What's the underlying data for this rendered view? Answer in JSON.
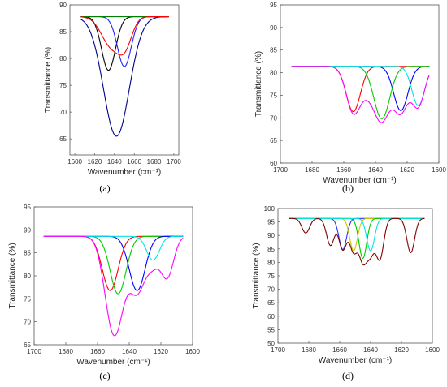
{
  "figure": {
    "panel_labels": [
      "(a)",
      "(b)",
      "(c)",
      "(d)"
    ]
  },
  "chart_data": [
    {
      "type": "line",
      "panel": "a",
      "xlabel": "Wavenumber (cm⁻¹)",
      "ylabel": "Transmittance (%)",
      "xlim": [
        1595,
        1705
      ],
      "ylim": [
        62,
        90
      ],
      "x_reversed": false,
      "xticks": [
        1600,
        1620,
        1640,
        1660,
        1680,
        1700
      ],
      "yticks": [
        65,
        70,
        75,
        80,
        85,
        90
      ],
      "baseline": 87.8,
      "x_range": [
        1606,
        1695
      ],
      "series": [
        {
          "color": "#00008b",
          "components": [
            {
              "center": 1642,
              "depth": 22.3,
              "width": 13
            }
          ]
        },
        {
          "color": "#000000",
          "components": [
            {
              "center": 1634,
              "depth": 10.0,
              "width": 7
            }
          ]
        },
        {
          "color": "#2222ff",
          "components": [
            {
              "center": 1650,
              "depth": 9.3,
              "width": 7
            }
          ]
        },
        {
          "color": "#008000",
          "components": []
        },
        {
          "color": "#ff0000",
          "components": [
            {
              "center": 1637,
              "depth": 5.5,
              "width": 10
            },
            {
              "center": 1651,
              "depth": 4.5,
              "width": 7
            }
          ]
        }
      ]
    },
    {
      "type": "line",
      "panel": "b",
      "xlabel": "Wavenumber (cm⁻¹)",
      "ylabel": "Transmittance (%)",
      "xlim": [
        1700,
        1600
      ],
      "ylim": [
        60,
        95
      ],
      "x_reversed": true,
      "xticks": [
        1700,
        1680,
        1660,
        1640,
        1620,
        1600
      ],
      "yticks": [
        60,
        65,
        70,
        75,
        80,
        85,
        90,
        95
      ],
      "baseline": 81.4,
      "x_range": [
        1693,
        1606
      ],
      "series": [
        {
          "color": "#0000ff",
          "components": [
            {
              "center": 1624,
              "depth": 9.8,
              "width": 4.5
            }
          ]
        },
        {
          "color": "#ff0000",
          "components": [
            {
              "center": 1654,
              "depth": 10.0,
              "width": 4.5
            }
          ]
        },
        {
          "color": "#00cc00",
          "components": [
            {
              "center": 1636,
              "depth": 11.6,
              "width": 5
            }
          ]
        },
        {
          "color": "#00e5e5",
          "components": [
            {
              "center": 1613,
              "depth": 8.7,
              "width": 4
            }
          ]
        },
        {
          "color": "#ff00ff",
          "components": [
            {
              "center": 1654,
              "depth": 10.0,
              "width": 4.5
            },
            {
              "center": 1645,
              "depth": 4.0,
              "width": 4.5
            },
            {
              "center": 1636,
              "depth": 11.6,
              "width": 5
            },
            {
              "center": 1624,
              "depth": 9.8,
              "width": 4.5
            },
            {
              "center": 1613,
              "depth": 8.7,
              "width": 4
            }
          ],
          "mode": "sum"
        }
      ]
    },
    {
      "type": "line",
      "panel": "c",
      "xlabel": "Wavenumber (cm⁻¹)",
      "ylabel": "Transmittance (%)",
      "xlim": [
        1700,
        1600
      ],
      "ylim": [
        65,
        95
      ],
      "x_reversed": true,
      "xticks": [
        1700,
        1680,
        1660,
        1640,
        1620,
        1600
      ],
      "yticks": [
        65,
        70,
        75,
        80,
        85,
        90,
        95
      ],
      "baseline": 88.6,
      "x_range": [
        1694,
        1606
      ],
      "series": [
        {
          "color": "#ff0000",
          "components": [
            {
              "center": 1652,
              "depth": 11.8,
              "width": 5
            }
          ]
        },
        {
          "color": "#00cc00",
          "components": [
            {
              "center": 1647,
              "depth": 12.5,
              "width": 5
            }
          ]
        },
        {
          "color": "#0000ff",
          "components": [
            {
              "center": 1635,
              "depth": 11.8,
              "width": 5
            }
          ]
        },
        {
          "color": "#00e5e5",
          "components": [
            {
              "center": 1625,
              "depth": 5.2,
              "width": 4
            }
          ]
        },
        {
          "color": "#ff00ff",
          "components": [
            {
              "center": 1652,
              "depth": 11.8,
              "width": 5
            },
            {
              "center": 1647,
              "depth": 12.5,
              "width": 5
            },
            {
              "center": 1635,
              "depth": 11.8,
              "width": 5
            },
            {
              "center": 1625,
              "depth": 5.2,
              "width": 4
            },
            {
              "center": 1616,
              "depth": 8.8,
              "width": 4
            }
          ],
          "mode": "sum"
        }
      ]
    },
    {
      "type": "line",
      "panel": "d",
      "xlabel": "Wavenumber (cm⁻¹)",
      "ylabel": "Transmittance (%)",
      "xlim": [
        1700,
        1600
      ],
      "ylim": [
        50,
        100
      ],
      "x_reversed": true,
      "xticks": [
        1700,
        1680,
        1660,
        1640,
        1620,
        1600
      ],
      "yticks": [
        50,
        55,
        60,
        65,
        70,
        75,
        80,
        85,
        90,
        95,
        100
      ],
      "baseline": 96.3,
      "x_range": [
        1693,
        1605
      ],
      "series": [
        {
          "color": "#3030ff",
          "components": [
            {
              "center": 1658,
              "depth": 11.5,
              "width": 2.5
            }
          ]
        },
        {
          "color": "#cccc00",
          "components": [
            {
              "center": 1651,
              "depth": 12.0,
              "width": 2.5
            }
          ]
        },
        {
          "color": "#00cc00",
          "components": [
            {
              "center": 1645,
              "depth": 14.8,
              "width": 2.5
            }
          ]
        },
        {
          "color": "#00e5e5",
          "components": [
            {
              "center": 1640,
              "depth": 12.0,
              "width": 2.5
            }
          ]
        },
        {
          "color": "#800000",
          "components": [
            {
              "center": 1682,
              "depth": 5.4,
              "width": 2.5
            },
            {
              "center": 1666,
              "depth": 10.0,
              "width": 2.5
            },
            {
              "center": 1658,
              "depth": 11.5,
              "width": 2.5
            },
            {
              "center": 1651,
              "depth": 12.0,
              "width": 2.5
            },
            {
              "center": 1645,
              "depth": 14.8,
              "width": 2.5
            },
            {
              "center": 1640,
              "depth": 12.0,
              "width": 2.5
            },
            {
              "center": 1634,
              "depth": 14.8,
              "width": 2.5
            },
            {
              "center": 1614,
              "depth": 12.7,
              "width": 2.5
            }
          ],
          "mode": "sum"
        }
      ]
    }
  ]
}
